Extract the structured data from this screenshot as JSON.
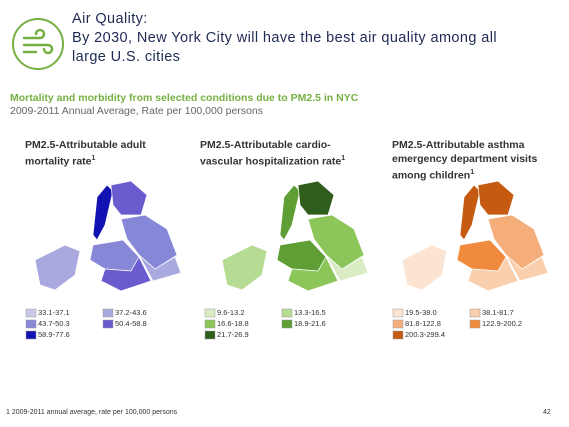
{
  "header": {
    "title_lines": [
      "Air Quality:",
      "By 2030, New York City will have the best air quality among all",
      "large U.S. cities"
    ],
    "subtitle": "Mortality and morbidity from selected conditions due to PM2.5 in NYC",
    "subtitle_note": "2009-2011 Annual Average, Rate per 100,000 persons"
  },
  "maps": [
    {
      "title": "PM2.5-Attributable adult mortality rate",
      "footnote_marker": "1",
      "legend": [
        {
          "label": "33.1-37.1",
          "color": "#c9c9ec"
        },
        {
          "label": "37.2-43.6",
          "color": "#a9a9e0"
        },
        {
          "label": "43.7-50.3",
          "color": "#8787d8"
        },
        {
          "label": "50.4-58.8",
          "color": "#6a5ccf"
        },
        {
          "label": "58.9-77.6",
          "color": "#1212b2"
        }
      ]
    },
    {
      "title": "PM2.5-Attributable cardio-vascular hospitalization rate",
      "footnote_marker": "1",
      "legend": [
        {
          "label": "9.6-13.2",
          "color": "#d9ecc4"
        },
        {
          "label": "13.3-16.5",
          "color": "#b5dc92"
        },
        {
          "label": "16.6-18.8",
          "color": "#8cc55a"
        },
        {
          "label": "18.9-21.6",
          "color": "#5e9e35"
        },
        {
          "label": "21.7-26.9",
          "color": "#2f5e1c"
        }
      ]
    },
    {
      "title": "PM2.5-Attributable asthma emergency department visits among children",
      "footnote_marker": "1",
      "legend": [
        {
          "label": "19.5-38.0",
          "color": "#fbe4d2"
        },
        {
          "label": "38.1-81.7",
          "color": "#f9cfae"
        },
        {
          "label": "81.8-122.8",
          "color": "#f5ae79"
        },
        {
          "label": "122.9-200.2",
          "color": "#f08a3c"
        },
        {
          "label": "200.3-299.4",
          "color": "#c55a11"
        }
      ]
    }
  ],
  "footnote": "1 2009-2011 annual average, rate per 100,000 persons",
  "page_number": "42"
}
